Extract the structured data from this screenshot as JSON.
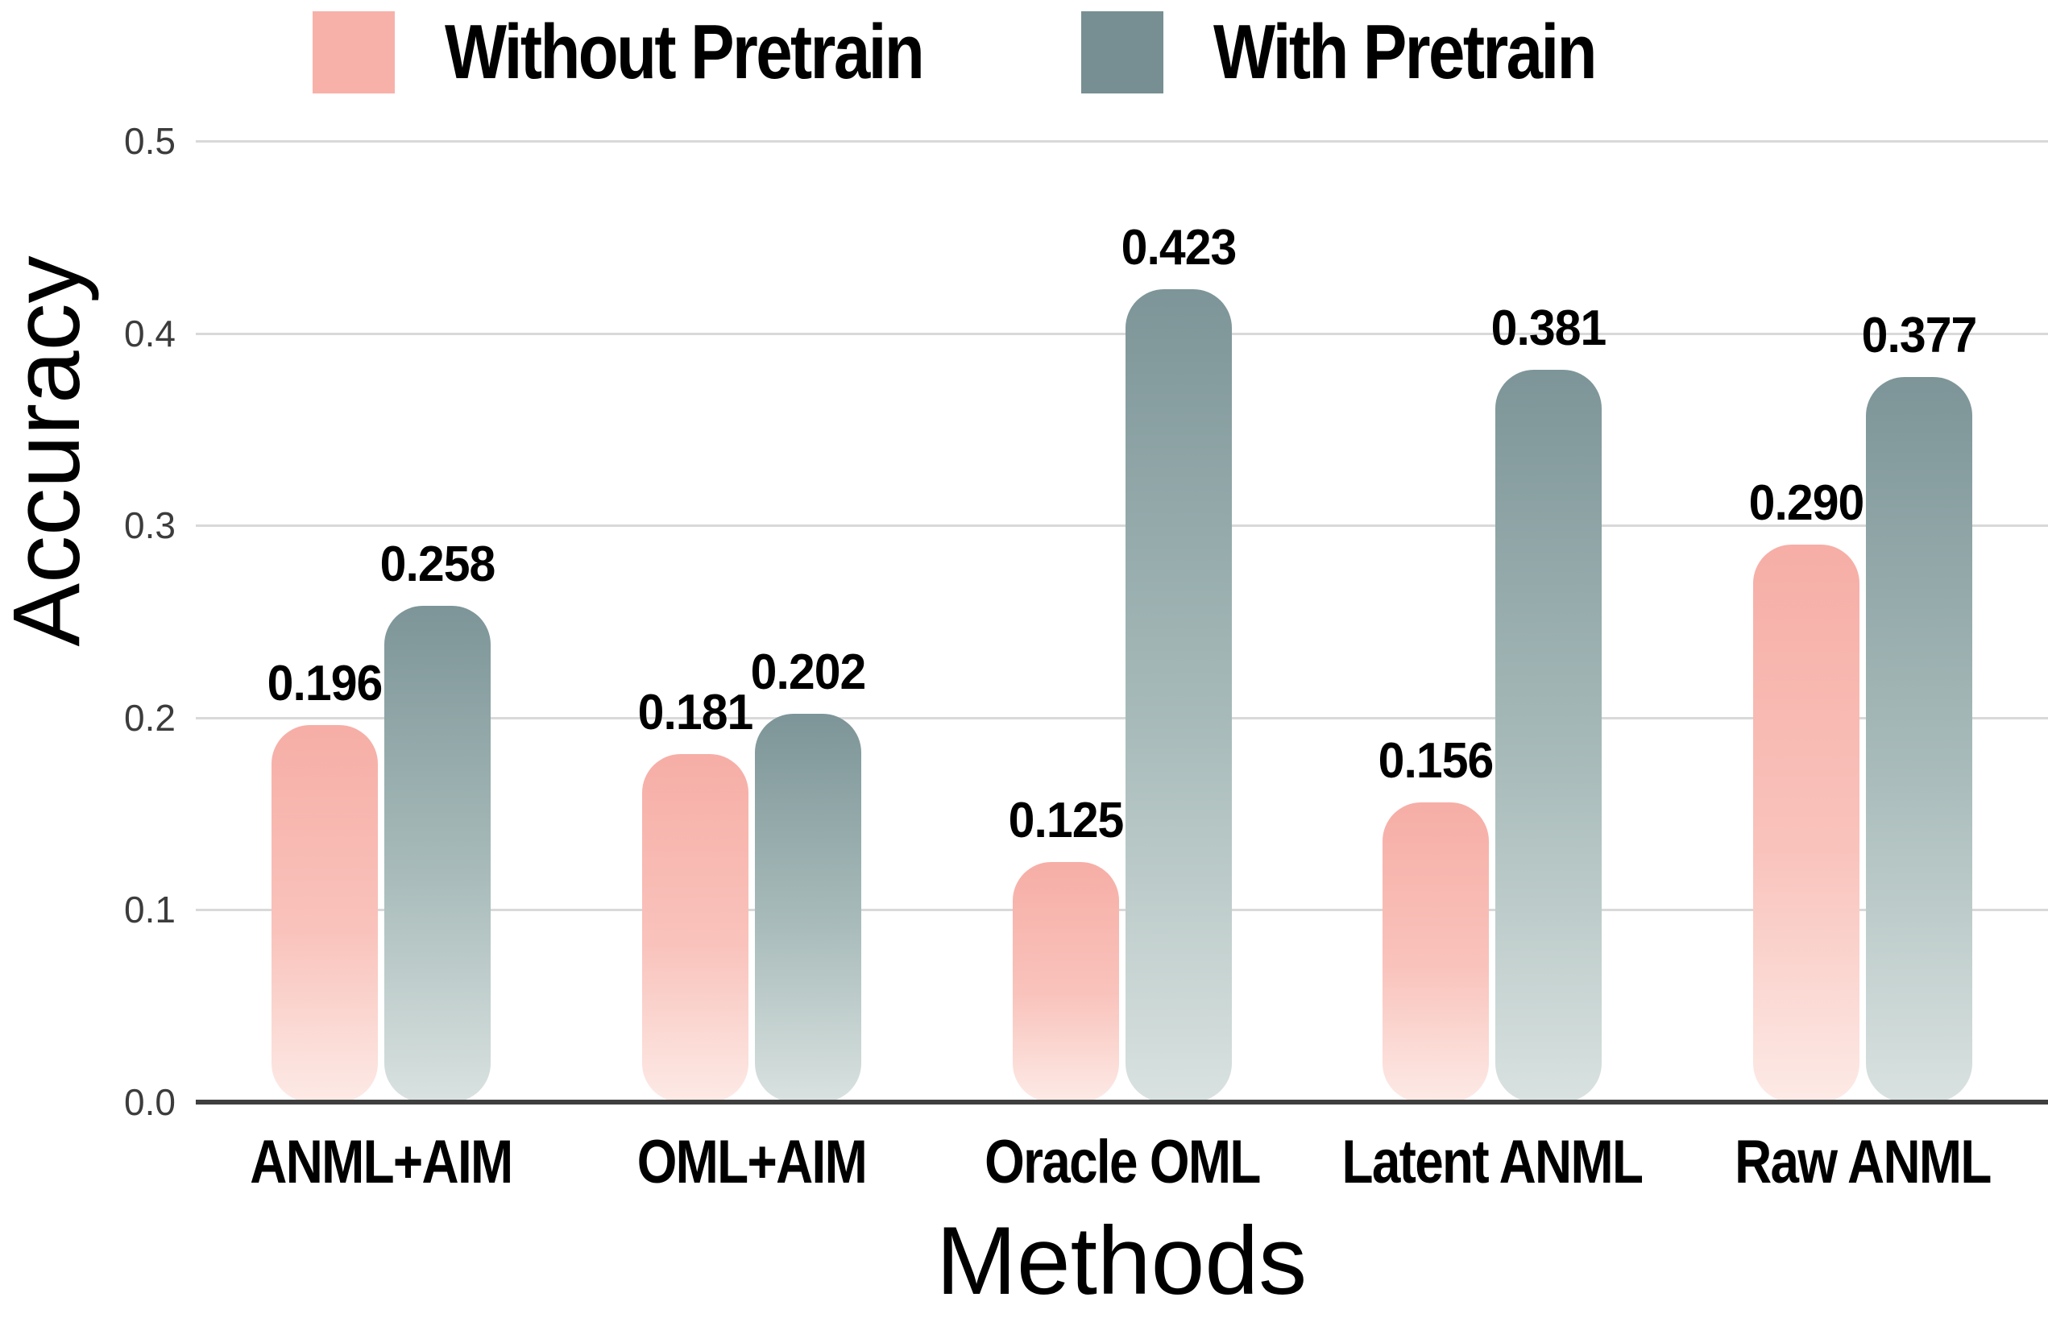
{
  "legend": {
    "items": [
      {
        "label": "Without Pretrain",
        "color": "#f7b1a9"
      },
      {
        "label": "With Pretrain",
        "color": "#778f92"
      }
    ]
  },
  "chart_data": {
    "type": "bar",
    "title": "",
    "categories": [
      "ANML+AIM",
      "OML+AIM",
      "Oracle OML",
      "Latent ANML",
      "Raw ANML"
    ],
    "series": [
      {
        "name": "Without Pretrain",
        "values": [
          0.196,
          0.181,
          0.125,
          0.156,
          0.29
        ],
        "value_labels": [
          "0.196",
          "0.181",
          "0.125",
          "0.156",
          "0.290"
        ],
        "color_top": "#f6aea6",
        "color_mid": "#f9c3bc",
        "color_bottom": "#fdeae6"
      },
      {
        "name": "With Pretrain",
        "values": [
          0.258,
          0.202,
          0.423,
          0.381,
          0.377
        ],
        "value_labels": [
          "0.258",
          "0.202",
          "0.423",
          "0.381",
          "0.377"
        ],
        "color_top": "#7d9598",
        "color_mid": "#a9bcbb",
        "color_bottom": "#d9e2e0"
      }
    ],
    "xlabel": "Methods",
    "ylabel": "Accuracy",
    "ylim": [
      0,
      0.5
    ],
    "yticks": [
      "0.0",
      "0.1",
      "0.2",
      "0.3",
      "0.4",
      "0.5"
    ],
    "grid": true,
    "legend_position": "top",
    "colors": {
      "gridline": "#d9d9d9",
      "axis_line": "#3f3f3f",
      "tick_text": "#3c3c3c",
      "label_text": "#000000"
    }
  }
}
